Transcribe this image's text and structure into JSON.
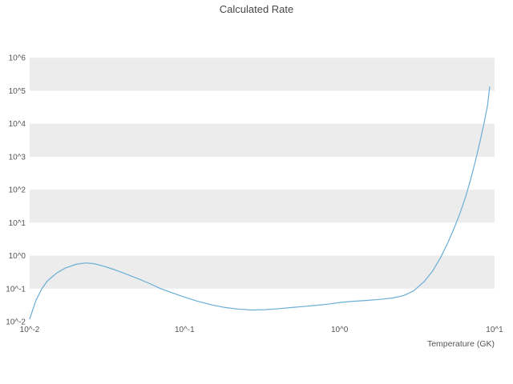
{
  "chart_data": {
    "type": "line",
    "title": "Calculated Rate",
    "xlabel": "Temperature (GK)",
    "ylabel": "",
    "x_scale": "log",
    "y_scale": "log",
    "xlim": [
      0.01,
      10
    ],
    "ylim": [
      0.01,
      1000000
    ],
    "xlim_decades": [
      -2,
      1
    ],
    "ylim_decades": [
      -2,
      6.15
    ],
    "grid": "striped-horizontal-bands",
    "legend": "none",
    "x_ticks": [
      {
        "label": "10^-2",
        "exp": -2
      },
      {
        "label": "10^-1",
        "exp": -1
      },
      {
        "label": "10^0",
        "exp": 0
      },
      {
        "label": "10^1",
        "exp": 1
      }
    ],
    "y_ticks": [
      {
        "label": "10^-2",
        "exp": -2
      },
      {
        "label": "10^-1",
        "exp": -1
      },
      {
        "label": "10^0",
        "exp": 0
      },
      {
        "label": "10^1",
        "exp": 1
      },
      {
        "label": "10^2",
        "exp": 2
      },
      {
        "label": "10^3",
        "exp": 3
      },
      {
        "label": "10^4",
        "exp": 4
      },
      {
        "label": "10^5",
        "exp": 5
      },
      {
        "label": "10^6",
        "exp": 6
      }
    ],
    "colors": {
      "line": "#6baed6",
      "band": "#ececec",
      "band_alt": "#ffffff",
      "tick_text": "#555555",
      "title_text": "#484848",
      "background": "#ffffff"
    },
    "series": [
      {
        "name": "calculated-rate",
        "x": [
          0.01,
          0.011,
          0.012,
          0.013,
          0.015,
          0.017,
          0.02,
          0.023,
          0.026,
          0.03,
          0.035,
          0.04,
          0.05,
          0.06,
          0.07,
          0.085,
          0.1,
          0.12,
          0.15,
          0.18,
          0.22,
          0.27,
          0.33,
          0.4,
          0.5,
          0.6,
          0.7,
          0.85,
          1.0,
          1.2,
          1.5,
          1.8,
          2.2,
          2.6,
          3.0,
          3.5,
          4.0,
          4.5,
          5.0,
          5.5,
          6.0,
          6.5,
          7.0,
          7.5,
          8.0,
          8.5,
          9.0,
          9.3
        ],
        "y": [
          0.012,
          0.045,
          0.1,
          0.17,
          0.3,
          0.42,
          0.55,
          0.6,
          0.57,
          0.48,
          0.38,
          0.3,
          0.2,
          0.14,
          0.1,
          0.072,
          0.055,
          0.042,
          0.032,
          0.027,
          0.024,
          0.0225,
          0.023,
          0.0245,
          0.027,
          0.029,
          0.031,
          0.034,
          0.038,
          0.041,
          0.044,
          0.047,
          0.052,
          0.062,
          0.085,
          0.16,
          0.35,
          0.9,
          2.5,
          7,
          20,
          60,
          200,
          700,
          2500,
          9000,
          35000,
          130000
        ]
      }
    ]
  }
}
